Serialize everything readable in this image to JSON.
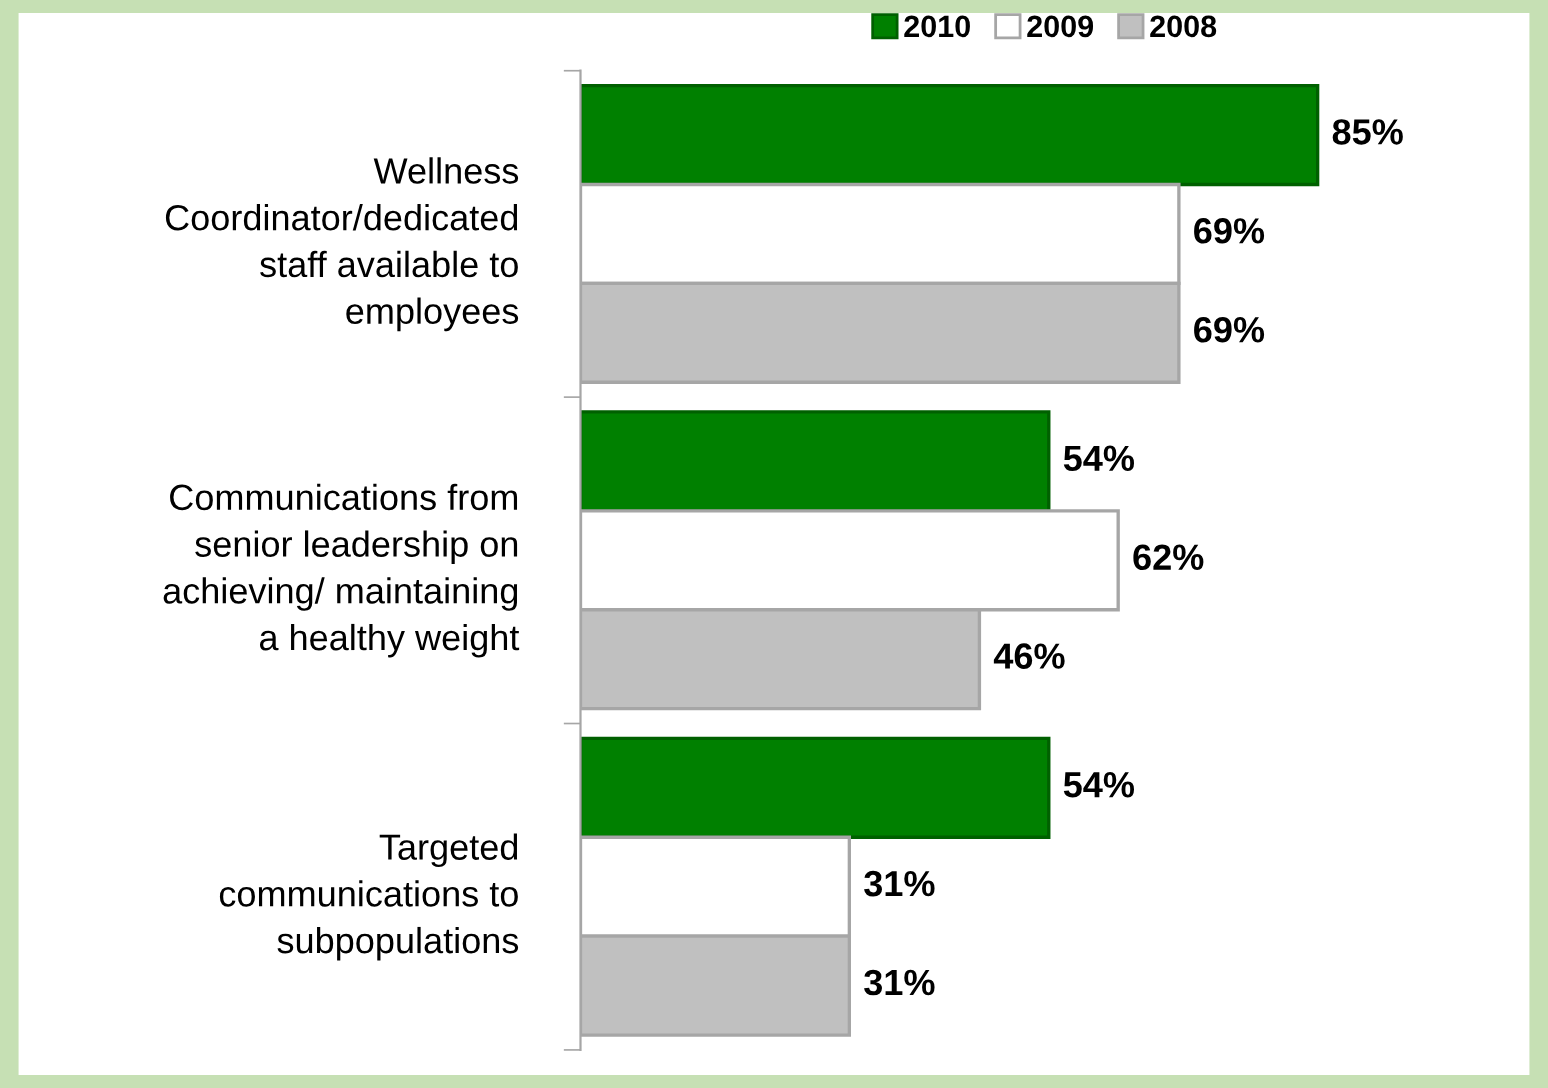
{
  "chart_data": {
    "type": "bar",
    "orientation": "horizontal",
    "categories": [
      "Wellness\nCoordinator/dedicated\nstaff available to\nemployees",
      "Communications from\nsenior leadership on\nachieving/ maintaining\na healthy weight",
      "Targeted\ncommunications to\nsubpopulations"
    ],
    "series": [
      {
        "name": "2010",
        "color": "#008000",
        "values": [
          85,
          54,
          54
        ],
        "value_labels": [
          "85%",
          "54%",
          "54%"
        ]
      },
      {
        "name": "2009",
        "color": "#ffffff",
        "values": [
          69,
          62,
          31
        ],
        "value_labels": [
          "69%",
          "62%",
          "31%"
        ]
      },
      {
        "name": "2008",
        "color": "#c0c0c0",
        "values": [
          69,
          46,
          31
        ],
        "value_labels": [
          "69%",
          "46%",
          "31%"
        ]
      }
    ],
    "legend": "top"
  }
}
